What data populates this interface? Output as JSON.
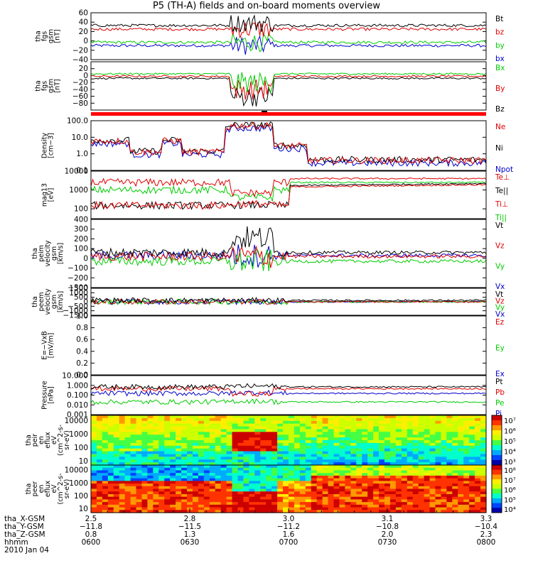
{
  "title": "P5 (TH-A) fields and on-board moments overview",
  "chart_data": [
    {
      "type": "line",
      "ylabel": [
        "tha",
        "fgs",
        "gsm",
        "[nT]"
      ],
      "ylim": [
        -40,
        60
      ],
      "ytick_labels": [
        "60",
        "40",
        "20",
        "0",
        "−20",
        "−40"
      ],
      "yticks": [
        60,
        40,
        20,
        0,
        -20,
        -40
      ],
      "log": false,
      "series": [
        {
          "name": "Bt",
          "color": "#000000"
        },
        {
          "name": "bz",
          "color": "#dd0000"
        },
        {
          "name": "by",
          "color": "#00cc00"
        },
        {
          "name": "bx",
          "color": "#0000cc"
        }
      ]
    },
    {
      "type": "line",
      "ylabel": [
        "tha",
        "fgs",
        "gsm",
        "[nT]"
      ],
      "ylim": [
        -100,
        40
      ],
      "ytick_labels": [
        "20",
        "0",
        "−20",
        "−40",
        "−60",
        "−80"
      ],
      "yticks": [
        20,
        0,
        -20,
        -40,
        -60,
        -80
      ],
      "log": false,
      "series": [
        {
          "name": "Bx",
          "color": "#00cc00"
        },
        {
          "name": "By",
          "color": "#dd0000"
        },
        {
          "name": "Bz",
          "color": "#000000"
        }
      ]
    },
    {
      "type": "line",
      "ylabel": [
        "Density",
        "[cm−3]"
      ],
      "ylim": [
        0.1,
        100
      ],
      "ytick_labels": [
        "100.0",
        "10.0",
        "1.0",
        "0.1"
      ],
      "yticks": [
        100,
        10,
        1,
        0.1
      ],
      "log": true,
      "series": [
        {
          "name": "Ne",
          "color": "#dd0000"
        },
        {
          "name": "Ni",
          "color": "#000000"
        },
        {
          "name": "Npot",
          "color": "#0000cc"
        }
      ]
    },
    {
      "type": "line",
      "ylabel": [
        "mag13",
        "[eV]"
      ],
      "ylim": [
        30,
        10000
      ],
      "ytick_labels": [
        "10000",
        "1000",
        "100"
      ],
      "yticks": [
        10000,
        1000,
        100
      ],
      "log": true,
      "series": [
        {
          "name": "Te⊥",
          "color": "#dd0000"
        },
        {
          "name": "Te||",
          "color": "#000000"
        },
        {
          "name": "Ti⊥",
          "color": "#dd0000"
        },
        {
          "name": "Ti||",
          "color": "#00cc00"
        }
      ]
    },
    {
      "type": "line",
      "ylabel": [
        "tha",
        "peim",
        "velocity",
        "gsm",
        "[km/s]"
      ],
      "ylim": [
        -300,
        400
      ],
      "ytick_labels": [
        "400",
        "300",
        "200",
        "100",
        "0",
        "−100",
        "−200",
        "−300"
      ],
      "yticks": [
        400,
        300,
        200,
        100,
        0,
        -100,
        -200,
        -300
      ],
      "log": false,
      "series": [
        {
          "name": "Vt",
          "color": "#000000"
        },
        {
          "name": "Vz",
          "color": "#dd0000"
        },
        {
          "name": "Vy",
          "color": "#00cc00"
        },
        {
          "name": "Vx",
          "color": "#0000cc"
        }
      ]
    },
    {
      "type": "line",
      "ylabel": [
        "tha",
        "peem",
        "velocity",
        "gsm",
        "[km/s]"
      ],
      "ylim": [
        -1500,
        1500
      ],
      "ytick_labels": [
        "1500",
        "1000",
        "500",
        "0",
        "−500",
        "−1000",
        "−1500"
      ],
      "yticks": [
        1500,
        1000,
        500,
        0,
        -500,
        -1000,
        -1500
      ],
      "log": false,
      "series": [
        {
          "name": "Vt",
          "color": "#000000"
        },
        {
          "name": "Vz",
          "color": "#dd0000"
        },
        {
          "name": "Vy",
          "color": "#00cc00"
        },
        {
          "name": "Vx",
          "color": "#0000cc"
        }
      ]
    },
    {
      "type": "line",
      "ylabel": [
        "E=−VxB",
        "[mV/m]"
      ],
      "ylim": [
        0,
        1
      ],
      "ytick_labels": [
        "1.0",
        "0.8",
        "0.6",
        "0.4",
        "0.2",
        "0.0"
      ],
      "yticks": [
        1,
        0.8,
        0.6,
        0.4,
        0.2,
        0
      ],
      "log": false,
      "series": [
        {
          "name": "Ez",
          "color": "#dd0000"
        },
        {
          "name": "Ey",
          "color": "#00cc00"
        },
        {
          "name": "Ex",
          "color": "#0000cc"
        }
      ]
    },
    {
      "type": "line",
      "ylabel": [
        "Pressure",
        "[nPa]"
      ],
      "ylim": [
        0.001,
        10
      ],
      "ytick_labels": [
        "10.000",
        "1.000",
        "0.100",
        "0.010",
        "0.001"
      ],
      "yticks": [
        10,
        1,
        0.1,
        0.01,
        0.001
      ],
      "log": true,
      "series": [
        {
          "name": "Pt",
          "color": "#000000"
        },
        {
          "name": "Pb",
          "color": "#dd0000"
        },
        {
          "name": "Pe",
          "color": "#00cc00"
        },
        {
          "name": "Pi",
          "color": "#0000cc"
        }
      ]
    },
    {
      "type": "heatmap",
      "ylabel": [
        "tha",
        "peir",
        "en",
        "eflux",
        "eV",
        "(cm^2-s-",
        "sr-eV)"
      ],
      "ylim": [
        5,
        25000
      ],
      "ytick_labels": [
        "10000",
        "1000",
        "100",
        "10"
      ],
      "yticks": [
        10000,
        1000,
        100,
        10
      ],
      "log": true,
      "colorbar_labels": [
        "10⁷",
        "10⁶",
        "10⁵",
        "10⁴",
        "10³"
      ]
    },
    {
      "type": "heatmap",
      "ylabel": [
        "tha",
        "peer",
        "en",
        "eflux",
        "eV",
        "(cm^2-s-",
        "sr-eV)"
      ],
      "ylim": [
        5,
        25000
      ],
      "ytick_labels": [
        "10000",
        "1000",
        "100",
        "10"
      ],
      "yticks": [
        10000,
        1000,
        100,
        10
      ],
      "log": true,
      "colorbar_labels": [
        "10⁸",
        "10⁷",
        "10⁶",
        "10⁵",
        "10⁴"
      ]
    }
  ],
  "x_axis": {
    "rows": [
      {
        "label": "tha_X-GSM",
        "values": [
          "2.5",
          "2.8",
          "3.0",
          "3.1",
          "3.3"
        ]
      },
      {
        "label": "tha_Y-GSM",
        "values": [
          "−11.8",
          "−11.5",
          "−11.2",
          "−10.8",
          "−10.4"
        ]
      },
      {
        "label": "tha_Z-GSM",
        "values": [
          "0.8",
          "1.3",
          "1.6",
          "2.0",
          "2.3"
        ]
      },
      {
        "label": "hhmm",
        "values": [
          "0600",
          "0630",
          "0700",
          "0730",
          "0800"
        ]
      }
    ],
    "date": "2010 Jan 04"
  }
}
